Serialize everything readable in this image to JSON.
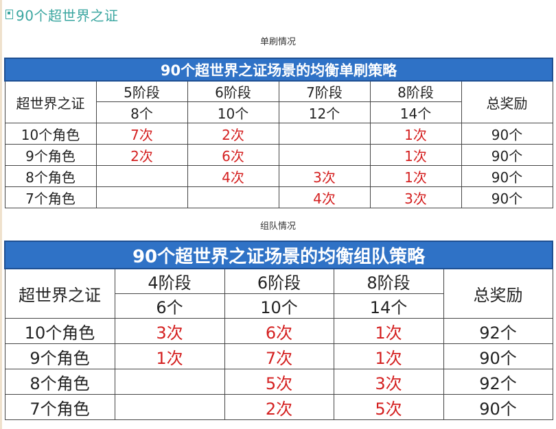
{
  "page": {
    "title": "90个超世界之证",
    "title_color": "#3aa6a0",
    "header_color": "#2f72c6",
    "highlight_color": "#d42020"
  },
  "solo": {
    "caption": "单刷情况",
    "table_title": "90个超世界之证场景的均衡单刷策略",
    "corner": "超世界之证",
    "total_header": "总奖励",
    "stages": [
      {
        "name": "5阶段",
        "count": "8个"
      },
      {
        "name": "6阶段",
        "count": "10个"
      },
      {
        "name": "7阶段",
        "count": "12个"
      },
      {
        "name": "8阶段",
        "count": "14个"
      }
    ],
    "rows": [
      {
        "label": "10个角色",
        "cells": [
          "7次",
          "2次",
          "",
          "1次"
        ],
        "total": "90个"
      },
      {
        "label": "9个角色",
        "cells": [
          "2次",
          "6次",
          "",
          "1次"
        ],
        "total": "90个"
      },
      {
        "label": "8个角色",
        "cells": [
          "",
          "4次",
          "3次",
          "1次"
        ],
        "total": "90个"
      },
      {
        "label": "7个角色",
        "cells": [
          "",
          "",
          "4次",
          "3次"
        ],
        "total": "90个"
      }
    ]
  },
  "team": {
    "caption": "组队情况",
    "table_title": "90个超世界之证场景的均衡组队策略",
    "corner": "超世界之证",
    "total_header": "总奖励",
    "stages": [
      {
        "name": "4阶段",
        "count": "6个"
      },
      {
        "name": "6阶段",
        "count": "10个"
      },
      {
        "name": "8阶段",
        "count": "14个"
      }
    ],
    "rows": [
      {
        "label": "10个角色",
        "cells": [
          "3次",
          "6次",
          "1次"
        ],
        "total": "92个"
      },
      {
        "label": "9个角色",
        "cells": [
          "1次",
          "7次",
          "1次"
        ],
        "total": "90个"
      },
      {
        "label": "8个角色",
        "cells": [
          "",
          "5次",
          "3次"
        ],
        "total": "92个"
      },
      {
        "label": "7个角色",
        "cells": [
          "",
          "2次",
          "5次"
        ],
        "total": "90个"
      }
    ]
  }
}
